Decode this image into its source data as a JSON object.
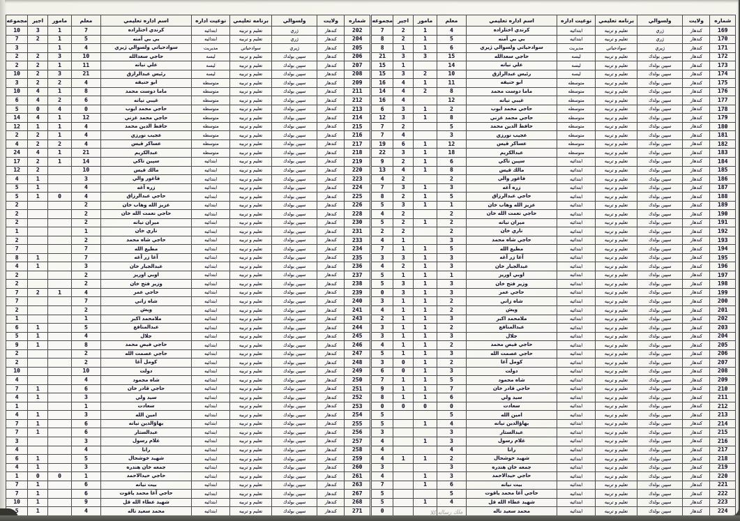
{
  "headers": {
    "number": "شماره",
    "province": "ولايت",
    "district": "ولسوالي",
    "program": "برنامه تعليمي",
    "admin_type": "نوعيت اداره",
    "admin_name": "اسم اداره تعليمي",
    "teacher": "معلم",
    "officer": "مامور",
    "worker": "اجير",
    "total": "مجموعه"
  },
  "province_value": "كندهار",
  "schools": [
    [
      "كرندي اختلزاده",
      "ژري",
      "تعليم و تربيه",
      "ابتدائيه"
    ],
    [
      "بي بي آمنه",
      "ژري",
      "تعليم و تربيه",
      "ابتدائيه"
    ],
    [
      "سوادحياتي ولسوالي ژيري",
      "ژيري",
      "سوادحياتي",
      "مديريت"
    ],
    [
      "حاجي سعدالله",
      "سپين بولدك",
      "تعليم و تربيه",
      "ليسه"
    ],
    [
      "علي نيانه",
      "سپين بولدك",
      "تعليم و تربيه",
      "ليسه"
    ],
    [
      "رئيس عبدالرازق",
      "سپين بولدك",
      "تعليم و تربيه",
      "ليسه"
    ],
    [
      "ابو حنيفه",
      "سپين بولدك",
      "تعليم و تربيه",
      "متوسطه"
    ],
    [
      "ماما دوست محمد",
      "سپين بولدك",
      "تعليم و تربيه",
      "متوسطه"
    ],
    [
      "غيبي نيانه",
      "سپين بولدك",
      "تعليم و تربيه",
      "متوسطه"
    ],
    [
      "حاجي محمد ايوب",
      "سپين بولدك",
      "تعليم و تربيه",
      "متوسطه"
    ],
    [
      "حاجي محمد غزني",
      "سپين بولدك",
      "تعليم و تربيه",
      "متوسطه"
    ],
    [
      "حافظ الدين محمد",
      "سپين بولدك",
      "تعليم و تربيه",
      "متوسطه"
    ],
    [
      "عجيب نورزي",
      "سپين بولدك",
      "تعليم و تربيه",
      "متوسطه"
    ],
    [
      "عساكر قيس",
      "سپين بولدك",
      "تعليم و تربيه",
      "متوسطه"
    ],
    [
      "عبدالكريم",
      "سپين بولدك",
      "تعليم و تربيه",
      "متوسطه"
    ],
    [
      "سپين تاكي",
      "سپين بولدك",
      "تعليم و تربيه",
      "ابتدائيه"
    ],
    [
      "مالك قيس",
      "سپين بولدك",
      "تعليم و تربيه",
      "ابتدائيه"
    ],
    [
      "فاغور والي",
      "سپين بولدك",
      "تعليم و تربيه",
      "ابتدائيه"
    ],
    [
      "زره آغه",
      "سپين بولدك",
      "تعليم و تربيه",
      "ابتدائيه"
    ],
    [
      "حاجي عبدالرزاق",
      "سپين بولدك",
      "تعليم و تربيه",
      "ابتدائيه"
    ],
    [
      "عزيز الله وهاب خان",
      "سپين بولدك",
      "تعليم و تربيه",
      "ابتدائيه"
    ],
    [
      "حاجي نعمت الله خان",
      "سپين بولدك",
      "تعليم و تربيه",
      "ابتدائيه"
    ],
    [
      "ميران نيانه",
      "سپين بولدك",
      "تعليم و تربيه",
      "ابتدائيه"
    ],
    [
      "ناري خان",
      "سپين بولدك",
      "تعليم و تربيه",
      "ابتدائيه"
    ],
    [
      "حاجي شاه محمد",
      "سپين بولدك",
      "تعليم و تربيه",
      "ابتدائيه"
    ],
    [
      "مطيع الله",
      "سپين بولدك",
      "تعليم و تربيه",
      "ابتدائيه"
    ],
    [
      "آغا زر آغه",
      "سپين بولدك",
      "تعليم و تربيه",
      "ابتدائيه"
    ],
    [
      "عبدالجبار خان",
      "سپين بولدك",
      "تعليم و تربيه",
      "ابتدائيه"
    ],
    [
      "اوبي اوريز",
      "سپين بولدك",
      "تعليم و تربيه",
      "ابتدائيه"
    ],
    [
      "وزير فتح خان",
      "سپين بولدك",
      "تعليم و تربيه",
      "ابتدائيه"
    ],
    [
      "حاجي عمر",
      "سپين بولدك",
      "تعليم و تربيه",
      "ابتدائيه"
    ],
    [
      "شاه زاني",
      "سپين بولدك",
      "تعليم و تربيه",
      "ابتدائيه"
    ],
    [
      "ويش",
      "سپين بولدك",
      "تعليم و تربيه",
      "ابتدائيه"
    ],
    [
      "ملامحمد اكبر",
      "سپين بولدك",
      "تعليم و تربيه",
      "ابتدائيه"
    ],
    [
      "عبدالمنافع",
      "سپين بولدك",
      "تعليم و تربيه",
      "ابتدائيه"
    ],
    [
      "جلال",
      "سپين بولدك",
      "تعليم و تربيه",
      "ابتدائيه"
    ],
    [
      "حاجي فيض محمد",
      "سپين بولدك",
      "تعليم و تربيه",
      "ابتدائيه"
    ],
    [
      "حاجي عصمت الله",
      "سپين بولدك",
      "تعليم و تربيه",
      "ابتدائيه"
    ],
    [
      "كومل آغا",
      "سپين بولدك",
      "تعليم و تربيه",
      "ابتدائيه"
    ],
    [
      "دولت",
      "سپين بولدك",
      "تعليم و تربيه",
      "ابتدائيه"
    ],
    [
      "شاه محمود",
      "سپين بولدك",
      "تعليم و تربيه",
      "ابتدائيه"
    ],
    [
      "حاجي قادر خان",
      "سپين بولدك",
      "تعليم و تربيه",
      "ابتدائيه"
    ],
    [
      "سيد ولي",
      "سپين بولدك",
      "تعليم و تربيه",
      "ابتدائيه"
    ],
    [
      "سعادت",
      "سپين بولدك",
      "تعليم و تربيه",
      "ابتدائيه"
    ],
    [
      "امين الله",
      "سپين بولدك",
      "تعليم و تربيه",
      "ابتدائيه"
    ],
    [
      "بهاؤالدين نيانه",
      "سپين بولدك",
      "تعليم و تربيه",
      "ابتدائيه"
    ],
    [
      "عبدالستار",
      "سپين بولدك",
      "تعليم و تربيه",
      "ابتدائيه"
    ],
    [
      "غلام رسول",
      "سپين بولدك",
      "تعليم و تربيه",
      "ابتدائيه"
    ],
    [
      "رانا",
      "سپين بولدك",
      "تعليم و تربيه",
      "ابتدائيه"
    ],
    [
      "شهيد خوشحال",
      "سپين بولدك",
      "تعليم و تربيه",
      "ابتدائيه"
    ],
    [
      "جمعه خان هندره",
      "سپين بولدك",
      "تعليم و تربيه",
      "ابتدائيه"
    ],
    [
      "حاجي حيدالاحمد",
      "سپين بولدك",
      "تعليم و تربيه",
      "ابتدائيه"
    ],
    [
      "بيت نيانه",
      "سپين بولدك",
      "تعليم و تربيه",
      "ابتدائيه"
    ],
    [
      "حاجي آغا محمد ياقوت",
      "سپين بولدك",
      "تعليم و تربيه",
      "ابتدائيه"
    ],
    [
      "شهيد عطاء الله قل",
      "سپين بولدك",
      "تعليم و تربيه",
      "ابتدائيه"
    ],
    [
      "محمد سعيد ناله",
      "سپين بولدك",
      "تعليم و تربيه",
      "ابتدائيه"
    ]
  ],
  "left_table": {
    "numbers": [
      "202",
      "204",
      "205",
      "206",
      "207",
      "208",
      "209",
      "211",
      "212",
      "213",
      "214",
      "215",
      "216",
      "217",
      "218",
      "219",
      "220",
      "223",
      "224",
      "225",
      "226",
      "228",
      "230",
      "231",
      "233",
      "234",
      "235",
      "236",
      "237",
      "238",
      "239",
      "240",
      "241",
      "243",
      "244",
      "245",
      "246",
      "247",
      "248",
      "249",
      "250",
      "251",
      "252",
      "253",
      "254",
      "255",
      "256",
      "257",
      "258",
      "259",
      "260",
      "261",
      "263",
      "267",
      "268",
      "271"
    ],
    "staff": [
      [
        "7",
        "1",
        "3",
        "10"
      ],
      [
        "5",
        "1",
        "2",
        "7"
      ],
      [
        "4",
        "1",
        "",
        "3"
      ],
      [
        "10",
        "3",
        "2",
        "2"
      ],
      [
        "11",
        "1",
        "2",
        "2"
      ],
      [
        "21",
        "3",
        "2",
        "10"
      ],
      [
        "4",
        "2",
        "2",
        "3"
      ],
      [
        "8",
        "1",
        "4",
        "10"
      ],
      [
        "6",
        "2",
        "4",
        "6"
      ],
      [
        "0",
        "4",
        "0",
        "5"
      ],
      [
        "12",
        "1",
        "4",
        "14"
      ],
      [
        "4",
        "1",
        "1",
        "12"
      ],
      [
        "4",
        "1",
        "2",
        "2"
      ],
      [
        "4",
        "2",
        "2",
        "4"
      ],
      [
        "21",
        "1",
        "4",
        "24"
      ],
      [
        "14",
        "1",
        "2",
        "17"
      ],
      [
        "10",
        "",
        "2",
        "12"
      ],
      [
        "3",
        "",
        "1",
        "4"
      ],
      [
        "4",
        "",
        "1",
        "5"
      ],
      [
        "4",
        "0",
        "1",
        "5"
      ],
      [
        "2",
        "",
        "",
        "2"
      ],
      [
        "2",
        "",
        "",
        "2"
      ],
      [
        "2",
        "",
        "",
        "2"
      ],
      [
        "1",
        "",
        "",
        "1"
      ],
      [
        "2",
        "",
        "",
        "2"
      ],
      [
        "7",
        "",
        "",
        "7"
      ],
      [
        "7",
        "",
        "1",
        "8"
      ],
      [
        "3",
        "",
        "1",
        "4"
      ],
      [
        "2",
        "",
        "",
        "2"
      ],
      [
        "2",
        "",
        "",
        "2"
      ],
      [
        "4",
        "1",
        "2",
        "7"
      ],
      [
        "7",
        "",
        "",
        "7"
      ],
      [
        "2",
        "",
        "",
        "2"
      ],
      [
        "1",
        "",
        "",
        "1"
      ],
      [
        "5",
        "",
        "1",
        "6"
      ],
      [
        "4",
        "",
        "1",
        "5"
      ],
      [
        "8",
        "",
        "1",
        "9"
      ],
      [
        "2",
        "",
        "",
        "2"
      ],
      [
        "2",
        "",
        "",
        "2"
      ],
      [
        "10",
        "",
        "",
        "10"
      ],
      [
        "4",
        "",
        "",
        "4"
      ],
      [
        "6",
        "",
        "1",
        "7"
      ],
      [
        "3",
        "",
        "1",
        "4"
      ],
      [
        "1",
        "",
        "",
        "1"
      ],
      [
        "3",
        "",
        "1",
        "4"
      ],
      [
        "6",
        "",
        "1",
        "7"
      ],
      [
        "6",
        "",
        "1",
        "7"
      ],
      [
        "3",
        "",
        "",
        "3"
      ],
      [
        "4",
        "",
        "",
        "4"
      ],
      [
        "5",
        "",
        "1",
        "6"
      ],
      [
        "3",
        "",
        "1",
        "4"
      ],
      [
        "1",
        "0",
        "0",
        "1"
      ],
      [
        "6",
        "",
        "1",
        "7"
      ],
      [
        "6",
        "",
        "1",
        "7"
      ],
      [
        "9",
        "",
        "1",
        "10"
      ],
      [
        "4",
        "",
        "1",
        "5"
      ]
    ]
  },
  "right_table": {
    "numbers": [
      "169",
      "170",
      "171",
      "172",
      "173",
      "174",
      "175",
      "176",
      "177",
      "178",
      "179",
      "180",
      "181",
      "182",
      "183",
      "184",
      "185",
      "186",
      "187",
      "188",
      "189",
      "190",
      "191",
      "192",
      "193",
      "194",
      "195",
      "196",
      "197",
      "198",
      "199",
      "200",
      "201",
      "202",
      "203",
      "204",
      "205",
      "206",
      "207",
      "208",
      "209",
      "210",
      "211",
      "212",
      "213",
      "214",
      "215",
      "216",
      "217",
      "218",
      "219",
      "220",
      "221",
      "222",
      "223",
      "224"
    ],
    "staff": [
      [
        "4",
        "1",
        "2",
        "7"
      ],
      [
        "5",
        "1",
        "2",
        "8"
      ],
      [
        "6",
        "1",
        "1",
        "8"
      ],
      [
        "15",
        "3",
        "3",
        "21"
      ],
      [
        "14",
        "",
        "1",
        "15"
      ],
      [
        "10",
        "2",
        "3",
        "15"
      ],
      [
        "11",
        "1",
        "4",
        "16"
      ],
      [
        "8",
        "2",
        "4",
        "14"
      ],
      [
        "12",
        "",
        "4",
        "16"
      ],
      [
        "2",
        "1",
        "3",
        "6"
      ],
      [
        "8",
        "1",
        "3",
        "12"
      ],
      [
        "5",
        "",
        "2",
        "7"
      ],
      [
        "3",
        "",
        "4",
        "7"
      ],
      [
        "12",
        "1",
        "6",
        "19"
      ],
      [
        "18",
        "1",
        "3",
        "22"
      ],
      [
        "6",
        "1",
        "2",
        "9"
      ],
      [
        "8",
        "1",
        "4",
        "13"
      ],
      [
        "2",
        "",
        "2",
        "4"
      ],
      [
        "3",
        "1",
        "3",
        "7"
      ],
      [
        "5",
        "1",
        "2",
        "8"
      ],
      [
        "1",
        "1",
        "3",
        "5"
      ],
      [
        "2",
        "",
        "2",
        "4"
      ],
      [
        "2",
        "1",
        "2",
        "5"
      ],
      [
        "2",
        "",
        "2",
        "2"
      ],
      [
        "3",
        "",
        "1",
        "4"
      ],
      [
        "5",
        "1",
        "1",
        "7"
      ],
      [
        "3",
        "1",
        "3",
        "3"
      ],
      [
        "3",
        "1",
        "2",
        "4"
      ],
      [
        "1",
        "1",
        "1",
        "5"
      ],
      [
        "3",
        "1",
        "3",
        "5"
      ],
      [
        "3",
        "1",
        "3",
        "0"
      ],
      [
        "2",
        "1",
        "1",
        "3"
      ],
      [
        "2",
        "1",
        "1",
        "4"
      ],
      [
        "3",
        "1",
        "1",
        "2"
      ],
      [
        "2",
        "1",
        "1",
        "3"
      ],
      [
        "3",
        "1",
        "1",
        "3"
      ],
      [
        "2",
        "1",
        "1",
        "4"
      ],
      [
        "3",
        "1",
        "1",
        "5"
      ],
      [
        "2",
        "1",
        "0",
        "3"
      ],
      [
        "3",
        "1",
        "0",
        "6"
      ],
      [
        "5",
        "1",
        "1",
        "7"
      ],
      [
        "7",
        "1",
        "1",
        "9"
      ],
      [
        "6",
        "1",
        "1",
        "8"
      ],
      [
        "0",
        "0",
        "0",
        "0"
      ],
      [
        "5",
        "",
        "",
        "5"
      ],
      [
        "4",
        "1",
        "",
        "5"
      ],
      [
        "3",
        "",
        "",
        "3"
      ],
      [
        "3",
        "1",
        "",
        "4"
      ],
      [
        "4",
        "",
        "",
        "4"
      ],
      [
        "2",
        "1",
        "1",
        "4"
      ],
      [
        "3",
        "",
        "",
        "3"
      ],
      [
        "3",
        "1",
        "",
        "4"
      ],
      [
        "6",
        "1",
        "",
        "7"
      ],
      [
        "5",
        "",
        "",
        "5"
      ],
      [
        "4",
        "1",
        "",
        "5"
      ],
      [
        "",
        "",
        "",
        "0"
      ]
    ]
  },
  "footer_note": "ملك رساله كلا"
}
